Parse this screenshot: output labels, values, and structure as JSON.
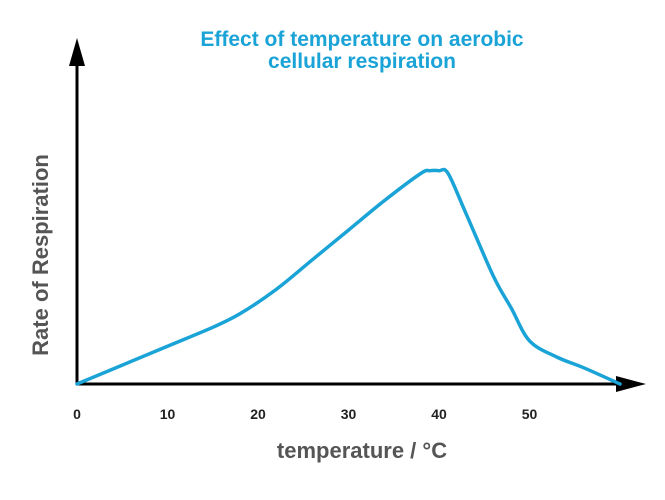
{
  "chart_data": {
    "type": "line",
    "title_lines": [
      "Effect of temperature on aerobic",
      "cellular respiration"
    ],
    "xlabel": "temperature / °C",
    "ylabel": "Rate of Respiration",
    "x_ticks": [
      0,
      10,
      20,
      30,
      40,
      50
    ],
    "xlim": [
      0,
      60
    ],
    "ylim": [
      0,
      100
    ],
    "y_ticks": [],
    "grid": false,
    "legend": "none",
    "series": [
      {
        "color": "#1aa3d6",
        "x": [
          0,
          5,
          10,
          15,
          18,
          22,
          26,
          30,
          34,
          38,
          39,
          40,
          41,
          43,
          46,
          48,
          50,
          53,
          56,
          60
        ],
        "y": [
          0,
          7,
          14,
          21,
          26,
          35,
          46,
          57,
          68,
          78,
          79,
          79,
          78,
          63,
          40,
          28,
          16,
          10,
          6,
          0
        ]
      }
    ],
    "colors": {
      "title": "#1aa3d6",
      "axis": "#000000",
      "tick_labels": "#222222",
      "axis_labels": "#555555",
      "line": "#1aa3d6"
    }
  }
}
